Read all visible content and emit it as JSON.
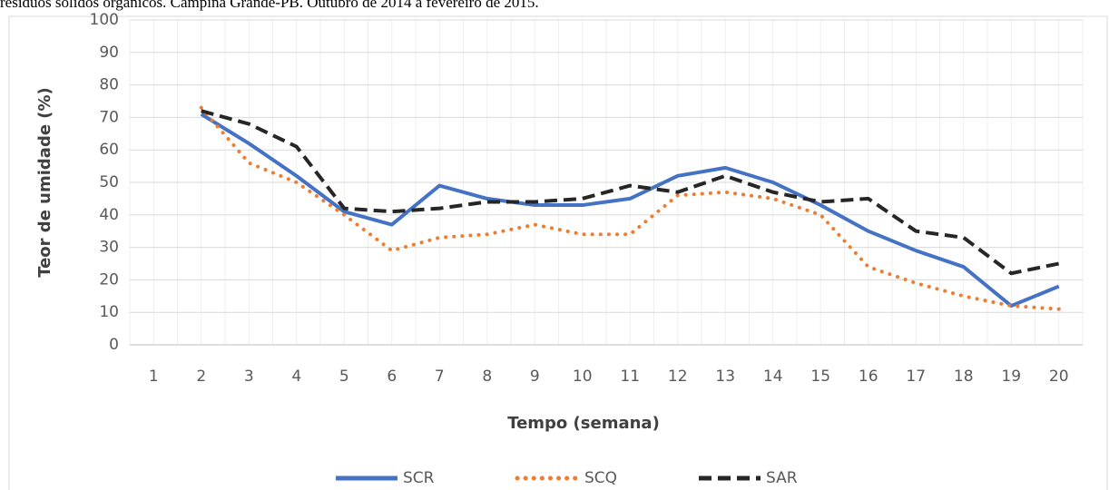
{
  "chart_data": {
    "type": "line",
    "caption": "resíduos sólidos orgânicos. Campina Grande-PB. Outubro de 2014 a fevereiro de 2015.",
    "x_label": "Tempo (semana)",
    "y_label": "Teor de umidade (%)",
    "categories": [
      "1",
      "2",
      "3",
      "4",
      "5",
      "6",
      "7",
      "8",
      "9",
      "10",
      "11",
      "12",
      "13",
      "14",
      "15",
      "16",
      "17",
      "18",
      "19",
      "20"
    ],
    "series": [
      {
        "name": "SCR",
        "color": "#4472c4",
        "style": "solid",
        "values": [
          null,
          71,
          62,
          52,
          41,
          37,
          49,
          45,
          43,
          43,
          45,
          52,
          54.5,
          50,
          43,
          35,
          29,
          24,
          12,
          18
        ]
      },
      {
        "name": "SCQ",
        "color": "#ed7d31",
        "style": "dotted",
        "values": [
          null,
          73,
          56,
          50,
          40,
          29,
          33,
          34,
          37,
          34,
          34,
          46,
          47,
          45,
          40,
          24,
          19,
          15,
          12,
          11
        ]
      },
      {
        "name": "SAR",
        "color": "#262626",
        "style": "dashed",
        "values": [
          null,
          72,
          68,
          61,
          42,
          41,
          42,
          44,
          44,
          45,
          49,
          47,
          52,
          47,
          44,
          45,
          35,
          33,
          22,
          25
        ]
      }
    ],
    "ylim": [
      0,
      100
    ],
    "yticks": [
      0,
      10,
      20,
      30,
      40,
      50,
      60,
      70,
      80,
      90,
      100
    ],
    "grid": true,
    "legend": "bottom"
  }
}
